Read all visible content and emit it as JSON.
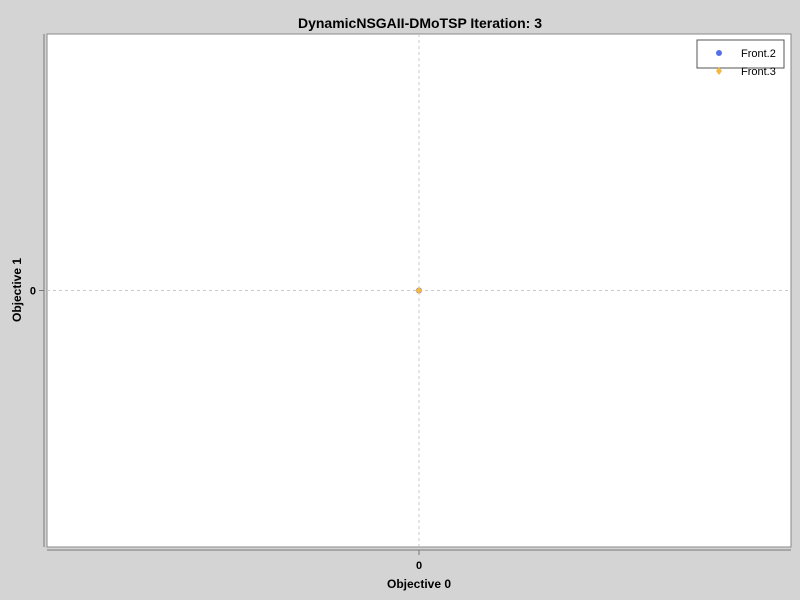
{
  "chart_data": {
    "type": "scatter",
    "title": "DynamicNSGAII-DMoTSP Iteration: 3",
    "xlabel": "Objective 0",
    "ylabel": "Objective 1",
    "x_ticks": [
      "0"
    ],
    "y_ticks": [
      "0"
    ],
    "xlim": [
      -1,
      1
    ],
    "ylim": [
      -1,
      1
    ],
    "grid": true,
    "legend_position": "top-right",
    "series": [
      {
        "name": "Front.2",
        "marker": "circle",
        "color": "#5470e8",
        "points": [
          [
            0,
            0
          ]
        ]
      },
      {
        "name": "Front.3",
        "marker": "diamond",
        "color": "#f5b942",
        "points": [
          [
            0,
            0
          ]
        ]
      }
    ]
  },
  "colors": {
    "background": "#d4d4d4",
    "plot_background": "#ffffff",
    "grid": "#c8c8c8"
  }
}
